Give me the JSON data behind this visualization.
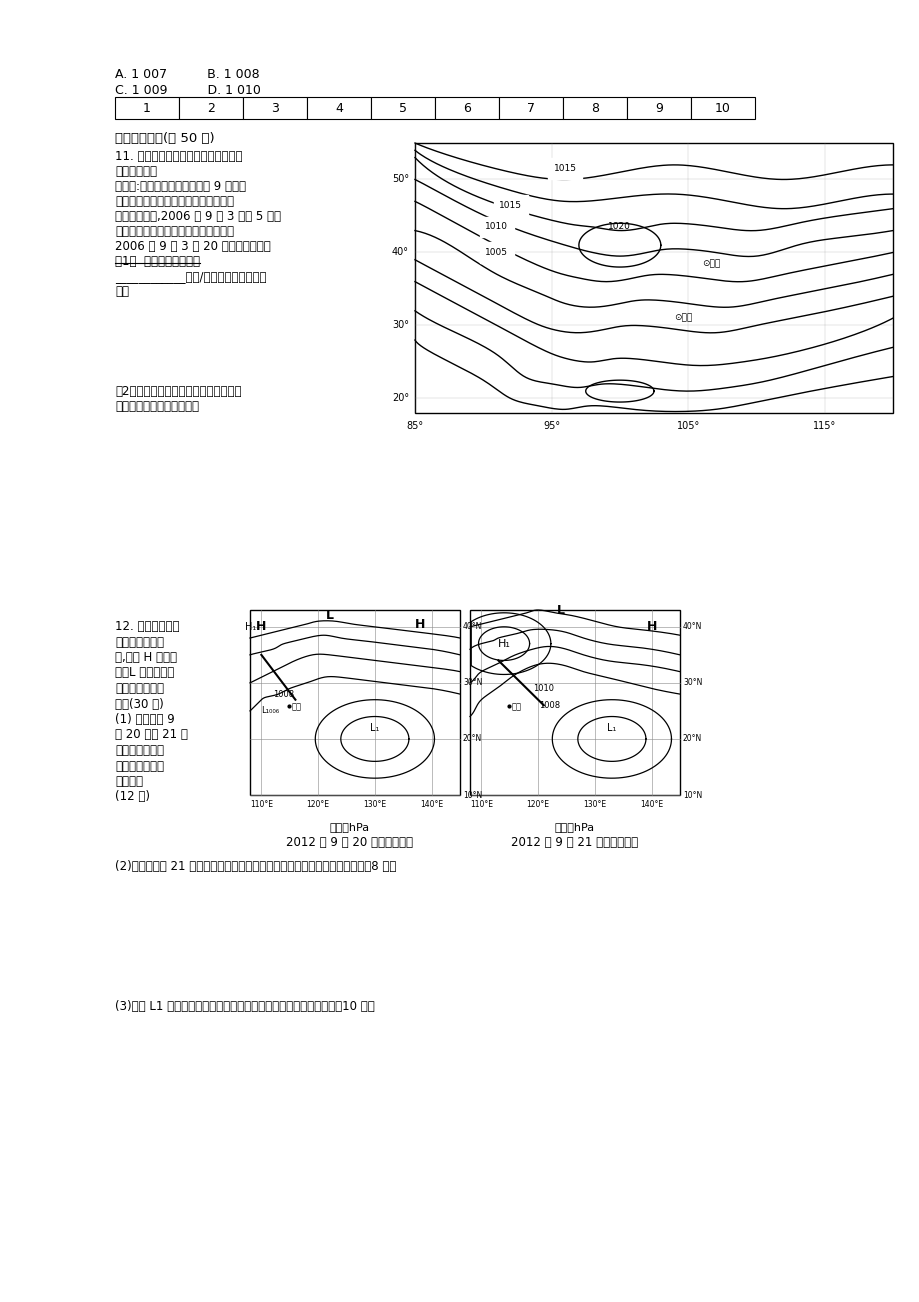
{
  "bg_color": "#ffffff",
  "title_top": "A. 1 007          B. 1 008\nC. 1 009          D. 1 010",
  "table_numbers": [
    "1",
    "2",
    "3",
    "4",
    "5",
    "6",
    "7",
    "8",
    "9",
    "10"
  ],
  "section2_title": "二、非选择题(共 50 分)",
  "q11_text": "11. 根据材料和图，结合所学知识，回\n答下列问题。\n材料一:亚洲冷高压一般形成于 9 月份，\n并逐步影响我国大部分地区冬半年的天\n气，受其影响,2006 年 9 月 3 日至 5 日，\n四川盆地经历一次暴雨过程。下图表示\n2006 年 9 月 3 日 20 时地面气压场。\n（1）  图示时间银川气温\n____________（高/低）于成都，分析成\n因。",
  "q11_2_text": "（2）指出图中成都的风向，判断过境成\n都的天气系统并简述理由。",
  "map1_xlabels": [
    "85°",
    "95°",
    "105°",
    "115°"
  ],
  "map1_ylabels": [
    "20°",
    "30°",
    "40°",
    "50°"
  ],
  "map1_pressure_labels": [
    "1015",
    "1020",
    "1015",
    "1010",
    "1005"
  ],
  "map1_city1": "⊙银川",
  "map1_city2": "⊙成都",
  "q12_text": "12. 下图为我国部\n分地区两日天气\n图,图中 H 为高气\n压、L 为低气压。\n读图回答下列问\n题。(30 分)\n(1) 分别说明 9\n月 20 日和 21 日\n赣州的天气状况\n并分析产生变化\n的原因。\n(12 分)",
  "map2_title1": "单位：hPa\n2012 年 9 月 20 日某时天气图",
  "map2_title2": "单位：hPa\n2012 年 9 月 21 日某时天气图",
  "q12_2_text": "(2)在图中画出 21 日赣州的风向，说明其两日风力大小的变化及判断理由。（8 分）",
  "q12_3_text": "(3)简述 L1 发展强烈时给所经地区带来的天气现象及产生的影响。（10 分）",
  "font_color": "#000000",
  "line_color": "#000000",
  "map_border_color": "#000000"
}
